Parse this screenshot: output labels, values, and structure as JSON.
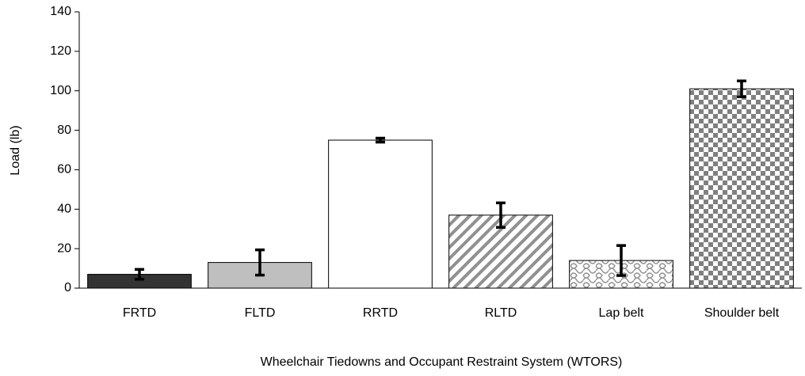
{
  "chart_data": {
    "type": "bar",
    "categories": [
      "FRTD",
      "FLTD",
      "RRTD",
      "RLTD",
      "Lap belt",
      "Shoulder belt"
    ],
    "values": [
      7,
      13,
      75,
      37,
      14,
      101
    ],
    "errors": [
      2.5,
      6.4,
      1,
      6.2,
      7.6,
      4
    ],
    "colors": [
      "#333333",
      "#bfbfbf",
      "#ffffff",
      "#909090",
      "#909090",
      "#808080"
    ],
    "patterns": [
      null,
      null,
      null,
      "diagonal",
      "weave",
      "checker"
    ],
    "ylabel": "Load (lb)",
    "xlabel": "Wheelchair Tiedowns and Occupant Restraint System (WTORS)",
    "ylim": [
      0,
      140
    ],
    "yticks": [
      0,
      20,
      40,
      60,
      80,
      100,
      120,
      140
    ]
  }
}
